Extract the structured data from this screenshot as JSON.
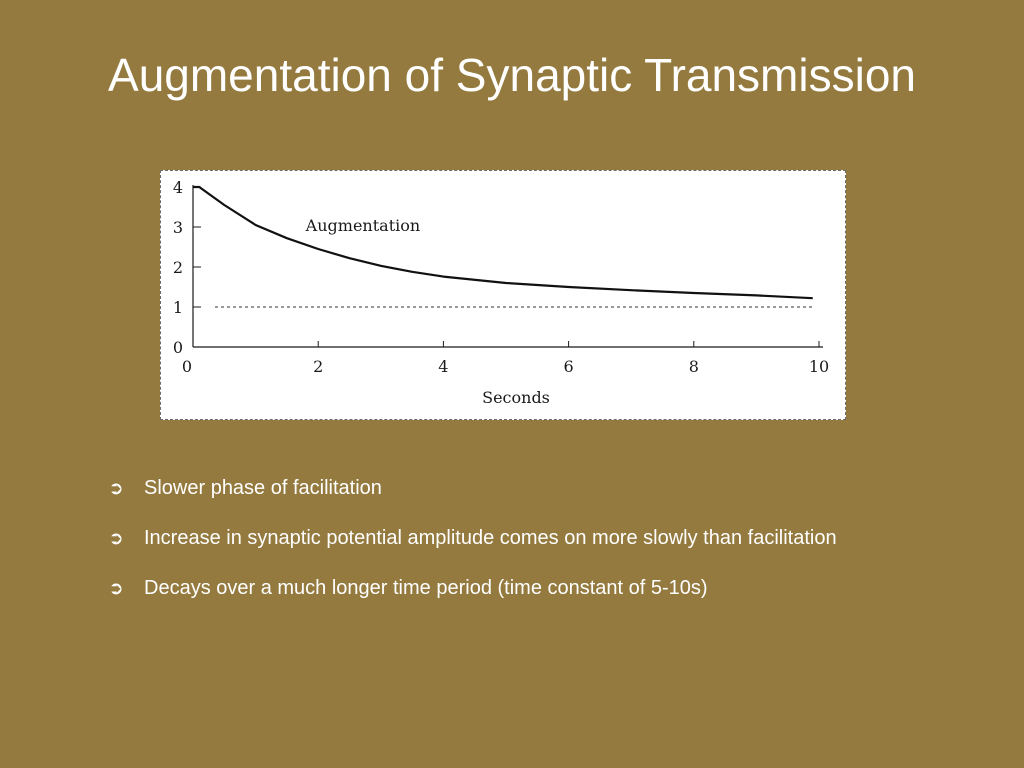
{
  "slide": {
    "title": "Augmentation of Synaptic Transmission",
    "bullet_icon": "circled-arrow-icon",
    "bullets": [
      "Slower phase of facilitation",
      "Increase in synaptic potential amplitude comes on more slowly than facilitation",
      "Decays over a much longer time period (time constant of 5-10s)"
    ]
  },
  "chart_data": {
    "type": "line",
    "xlabel": "Seconds",
    "ylabel": "",
    "xlim": [
      0,
      10
    ],
    "ylim": [
      0,
      4
    ],
    "xticks": [
      "0",
      "2",
      "4",
      "6",
      "8",
      "10"
    ],
    "yticks": [
      "0",
      "1",
      "2",
      "3",
      "4"
    ],
    "grid": false,
    "series": [
      {
        "name": "Augmentation",
        "x": [
          0,
          0.1,
          0.5,
          1,
          1.5,
          2,
          2.5,
          3,
          3.5,
          4,
          5,
          6,
          7,
          8,
          9,
          9.9
        ],
        "y": [
          4.0,
          4.0,
          3.55,
          3.05,
          2.72,
          2.45,
          2.22,
          2.03,
          1.88,
          1.76,
          1.6,
          1.5,
          1.42,
          1.35,
          1.29,
          1.22
        ]
      }
    ],
    "reference_line": {
      "y": 1,
      "style": "dashed"
    }
  }
}
